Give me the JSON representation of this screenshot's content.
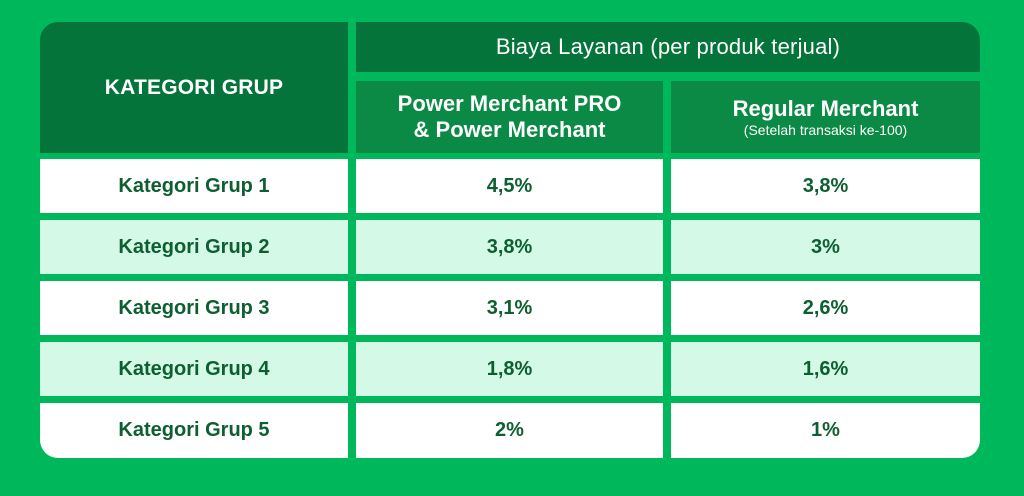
{
  "header": {
    "group_column": "KATEGORI GRUP",
    "fee_title": "Biaya Layanan (per produk terjual)",
    "columns": [
      {
        "title_line1": "Power Merchant PRO",
        "title_line2": "& Power Merchant",
        "note": ""
      },
      {
        "title_line1": "Regular Merchant",
        "title_line2": "",
        "note": "(Setelah transaksi ke-100)"
      }
    ]
  },
  "rows": [
    {
      "label": "Kategori Grup 1",
      "pm": "4,5%",
      "regular": "3,8%"
    },
    {
      "label": "Kategori Grup 2",
      "pm": "3,8%",
      "regular": "3%"
    },
    {
      "label": "Kategori Grup 3",
      "pm": "3,1%",
      "regular": "2,6%"
    },
    {
      "label": "Kategori Grup 4",
      "pm": "1,8%",
      "regular": "1,6%"
    },
    {
      "label": "Kategori Grup 5",
      "pm": "2%",
      "regular": "1%"
    }
  ],
  "colors": {
    "background": "#00b85c",
    "header_dark": "#04743a",
    "header_mid": "#0b8a45",
    "row_white": "#ffffff",
    "row_mint": "#d4f9e6",
    "text_dark": "#0d5f31"
  }
}
